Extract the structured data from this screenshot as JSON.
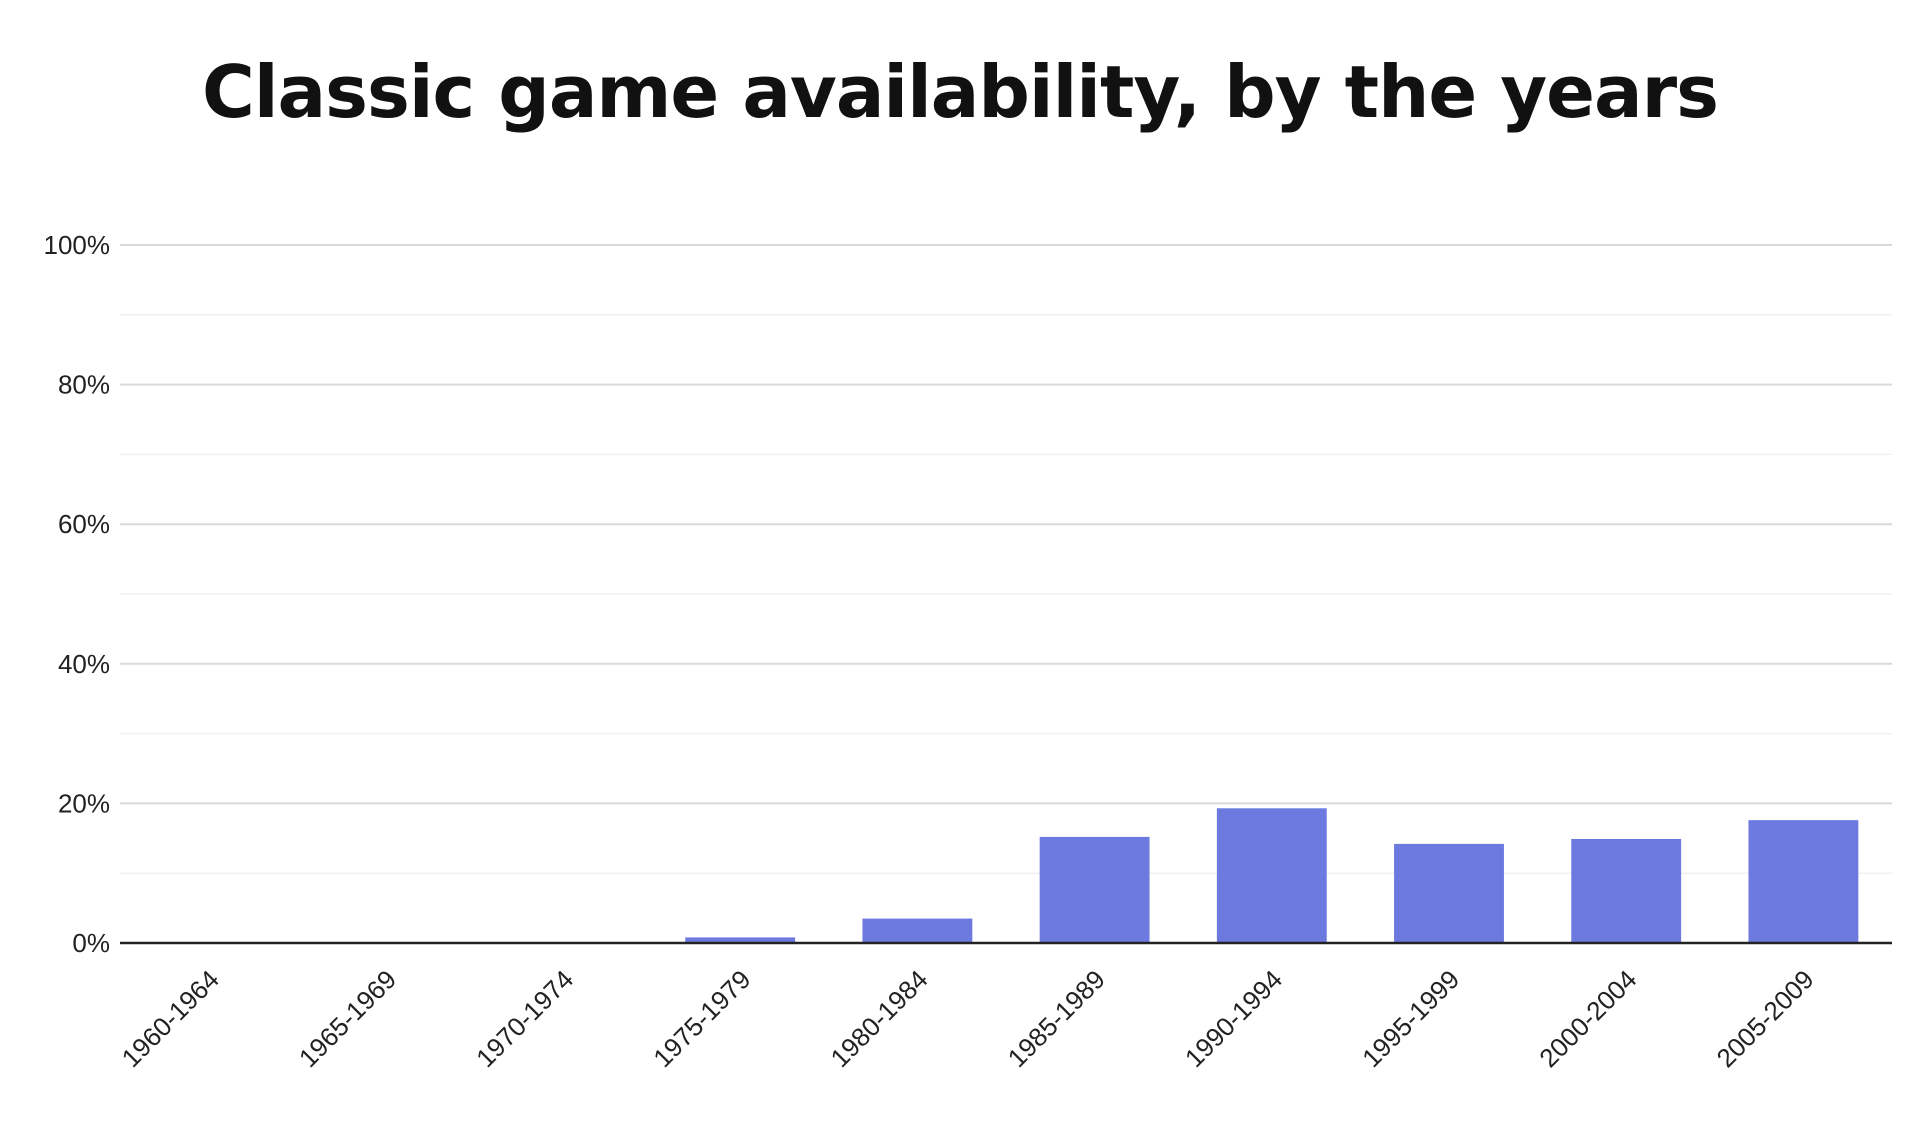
{
  "chart_data": {
    "type": "bar",
    "title": "Classic game availability, by the years",
    "xlabel": "",
    "ylabel": "",
    "categories": [
      "1960-1964",
      "1965-1969",
      "1970-1974",
      "1975-1979",
      "1980-1984",
      "1985-1989",
      "1990-1994",
      "1995-1999",
      "2000-2004",
      "2005-2009"
    ],
    "values": [
      0,
      0,
      0,
      0.8,
      3.5,
      15.2,
      19.3,
      14.2,
      14.9,
      17.6
    ],
    "ylim": [
      0,
      100
    ],
    "yticks": [
      0,
      20,
      40,
      60,
      80,
      100
    ],
    "ytick_labels": [
      "0%",
      "20%",
      "40%",
      "60%",
      "80%",
      "100%"
    ],
    "grid": true,
    "bar_color": "#6c7ae0",
    "gridline_color": "#d9d9d9",
    "axis_color": "#222222"
  }
}
